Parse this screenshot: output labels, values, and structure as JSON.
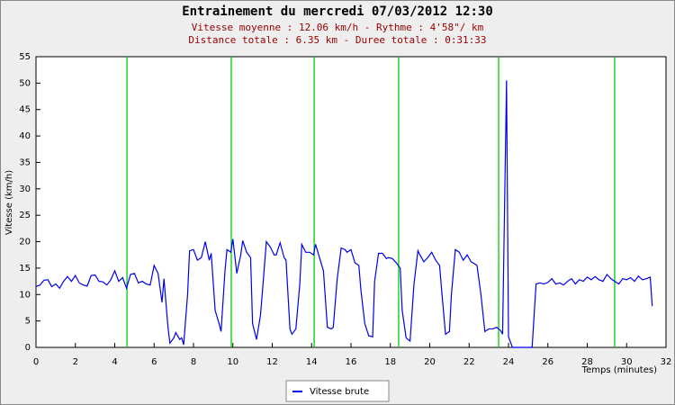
{
  "chart_data": {
    "type": "line",
    "title": "Entrainement du mercredi 07/03/2012 12:30",
    "subtitle": [
      "Vitesse moyenne : 12.06 km/h - Rythme : 4'58\"/ km",
      "Distance totale : 6.35 km - Duree totale : 0:31:33"
    ],
    "x_label": "Temps (minutes)",
    "y_label": "Vitesse (km/h)",
    "xlim": [
      0,
      32
    ],
    "xticks": [
      0,
      2,
      4,
      6,
      8,
      10,
      12,
      14,
      16,
      18,
      20,
      22,
      24,
      26,
      28,
      30,
      32
    ],
    "ylim": [
      0,
      55
    ],
    "yticks": [
      0,
      5,
      10,
      15,
      20,
      25,
      30,
      35,
      40,
      45,
      50,
      55
    ],
    "grid": false,
    "legend": "bottom",
    "markers": {
      "color": "#00cc00",
      "x": [
        4.62,
        9.92,
        14.13,
        18.42,
        23.5,
        29.39
      ]
    },
    "x": [
      0.0,
      0.2,
      0.4,
      0.6,
      0.8,
      1.0,
      1.2,
      1.4,
      1.6,
      1.8,
      2.0,
      2.2,
      2.4,
      2.6,
      2.8,
      3.0,
      3.2,
      3.4,
      3.6,
      3.8,
      4.0,
      4.2,
      4.4,
      4.6,
      4.8,
      5.0,
      5.2,
      5.4,
      5.6,
      5.8,
      6.0,
      6.2,
      6.4,
      6.5,
      6.7,
      6.8,
      7.0,
      7.1,
      7.3,
      7.4,
      7.5,
      7.7,
      7.8,
      8.0,
      8.2,
      8.4,
      8.6,
      8.8,
      8.9,
      9.1,
      9.3,
      9.4,
      9.6,
      9.7,
      9.9,
      10.0,
      10.2,
      10.4,
      10.5,
      10.7,
      10.9,
      11.0,
      11.2,
      11.4,
      11.5,
      11.7,
      11.9,
      12.1,
      12.2,
      12.4,
      12.6,
      12.7,
      12.9,
      13.0,
      13.2,
      13.4,
      13.5,
      13.7,
      13.9,
      14.1,
      14.2,
      14.4,
      14.6,
      14.8,
      15.0,
      15.1,
      15.3,
      15.5,
      15.7,
      15.8,
      16.0,
      16.2,
      16.4,
      16.5,
      16.7,
      16.9,
      17.1,
      17.2,
      17.4,
      17.6,
      17.8,
      17.9,
      18.1,
      18.3,
      18.5,
      18.6,
      18.8,
      19.0,
      19.2,
      19.4,
      19.5,
      19.7,
      19.9,
      20.1,
      20.3,
      20.5,
      20.6,
      20.8,
      21.0,
      21.1,
      21.3,
      21.5,
      21.7,
      21.9,
      22.1,
      22.2,
      22.4,
      22.6,
      22.8,
      23.0,
      23.2,
      23.4,
      23.6,
      23.7,
      23.9,
      24.0,
      24.2,
      24.6,
      25.0,
      25.2,
      25.4,
      25.6,
      25.8,
      26.0,
      26.2,
      26.4,
      26.6,
      26.8,
      27.0,
      27.2,
      27.4,
      27.6,
      27.8,
      28.0,
      28.2,
      28.4,
      28.6,
      28.8,
      29.0,
      29.2,
      29.4,
      29.6,
      29.8,
      30.0,
      30.2,
      30.4,
      30.6,
      30.8,
      31.0,
      31.2,
      31.3
    ],
    "series": [
      {
        "name": "Vitesse brute",
        "color": "#0000ee",
        "values": [
          11.5,
          11.8,
          12.7,
          12.8,
          11.5,
          12.0,
          11.2,
          12.5,
          13.4,
          12.5,
          13.6,
          12.2,
          11.8,
          11.6,
          13.6,
          13.7,
          12.5,
          12.4,
          11.8,
          12.8,
          14.5,
          12.5,
          13.2,
          11.2,
          13.8,
          14.0,
          12.2,
          12.5,
          12.0,
          11.8,
          15.5,
          14.0,
          8.5,
          13.0,
          4.0,
          0.8,
          1.8,
          2.8,
          1.5,
          1.8,
          0.5,
          10.0,
          18.3,
          18.5,
          16.5,
          17.0,
          20.0,
          16.5,
          17.8,
          7.0,
          4.5,
          3.0,
          14.5,
          18.5,
          18.0,
          20.5,
          14.0,
          17.5,
          20.2,
          18.0,
          17.0,
          4.5,
          1.5,
          6.0,
          10.5,
          20.0,
          19.0,
          17.5,
          17.5,
          19.8,
          17.0,
          16.5,
          3.5,
          2.5,
          3.5,
          12.0,
          19.5,
          18.0,
          18.0,
          17.5,
          19.5,
          17.0,
          14.5,
          3.8,
          3.5,
          3.8,
          13.0,
          18.8,
          18.5,
          18.0,
          18.5,
          16.0,
          15.5,
          11.0,
          4.5,
          2.2,
          2.0,
          12.5,
          17.8,
          17.8,
          16.8,
          17.0,
          16.8,
          16.0,
          15.0,
          7.0,
          1.8,
          1.2,
          12.0,
          18.3,
          17.5,
          16.2,
          17.0,
          18.0,
          16.5,
          15.5,
          11.0,
          2.5,
          3.0,
          10.0,
          18.5,
          18.0,
          16.5,
          17.5,
          16.2,
          16.0,
          15.5,
          10.0,
          3.0,
          3.5,
          3.5,
          3.8,
          3.2,
          2.5,
          50.5,
          2.0,
          0,
          0,
          0,
          0,
          12.0,
          12.2,
          12.0,
          12.3,
          13.0,
          12.0,
          12.2,
          11.8,
          12.5,
          13.0,
          12.0,
          12.8,
          12.5,
          13.3,
          12.8,
          13.4,
          12.8,
          12.5,
          13.8,
          13.0,
          12.5,
          12.0,
          13.0,
          12.8,
          13.2,
          12.5,
          13.5,
          12.8,
          13.0,
          13.3,
          7.8
        ]
      }
    ]
  }
}
